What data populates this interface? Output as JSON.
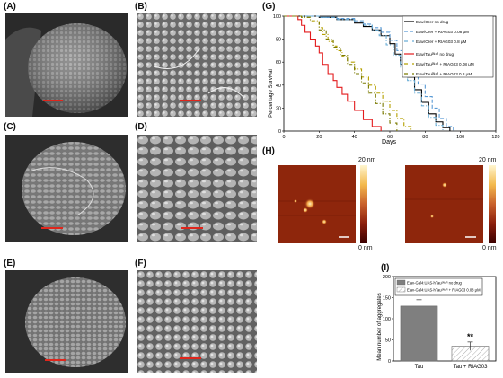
{
  "panels": {
    "A": "(A)",
    "B": "(B)",
    "C": "(C)",
    "D": "(D)",
    "E": "(E)",
    "F": "(F)",
    "G": "(G)",
    "H": "(H)",
    "I": "(I)"
  },
  "chart_data": [
    {
      "type": "line",
      "panel": "G",
      "xlabel": "Days",
      "ylabel": "Percentage Survival",
      "xlim": [
        0,
        120
      ],
      "ylim": [
        0,
        100
      ],
      "xticks": [
        0,
        20,
        40,
        60,
        80,
        100,
        120
      ],
      "yticks": [
        0,
        20,
        40,
        60,
        80,
        100
      ],
      "grid": false,
      "legend_position": "top-right",
      "colors": [
        "#000000",
        "#5b9bd5",
        "#6baed6",
        "#e31a1c",
        "#b5a000",
        "#7a7a00"
      ],
      "series": [
        {
          "name": "Elav/Orer no drug",
          "color": "#000000",
          "dash": "solid",
          "x": [
            0,
            10,
            20,
            30,
            40,
            45,
            50,
            55,
            60,
            63,
            66,
            70,
            74,
            78,
            82,
            86,
            90,
            94
          ],
          "y": [
            100,
            100,
            99,
            97,
            94,
            91,
            88,
            83,
            76,
            67,
            58,
            47,
            36,
            25,
            15,
            8,
            3,
            0
          ]
        },
        {
          "name": "Elav/Orer + RIAG03 0.08 μM",
          "color": "#5b9bd5",
          "dash": "dash",
          "x": [
            0,
            10,
            20,
            30,
            40,
            45,
            50,
            55,
            60,
            64,
            68,
            72,
            76,
            80,
            84,
            88,
            92,
            96
          ],
          "y": [
            100,
            100,
            99,
            98,
            96,
            93,
            90,
            86,
            79,
            70,
            61,
            51,
            41,
            30,
            20,
            11,
            4,
            0
          ]
        },
        {
          "name": "Elav/Orer + RIAG03 0.8 μM",
          "color": "#6baed6",
          "dash": "dashdot",
          "x": [
            0,
            10,
            20,
            30,
            40,
            45,
            50,
            54,
            58,
            62,
            66,
            70,
            74,
            78,
            82,
            86,
            90
          ],
          "y": [
            100,
            100,
            99,
            97,
            95,
            92,
            88,
            83,
            75,
            66,
            55,
            44,
            33,
            22,
            12,
            5,
            0
          ]
        },
        {
          "name": "Elav/Tau^2N4R no drug",
          "color": "#e31a1c",
          "dash": "solid",
          "x": [
            0,
            5,
            8,
            10,
            12,
            15,
            18,
            20,
            22,
            25,
            28,
            30,
            33,
            36,
            40,
            45,
            50,
            55
          ],
          "y": [
            100,
            100,
            97,
            92,
            86,
            80,
            74,
            68,
            58,
            50,
            44,
            38,
            32,
            26,
            18,
            10,
            4,
            0
          ]
        },
        {
          "name": "Elav/Tau^2N4R + RIAG03 0.08 μM",
          "color": "#b5a000",
          "dash": "dashdot",
          "x": [
            0,
            10,
            15,
            20,
            22,
            25,
            28,
            30,
            33,
            36,
            40,
            44,
            48,
            52,
            56,
            60,
            64,
            68,
            72
          ],
          "y": [
            100,
            99,
            96,
            90,
            84,
            78,
            74,
            70,
            65,
            60,
            54,
            47,
            40,
            33,
            26,
            18,
            11,
            4,
            0
          ]
        },
        {
          "name": "Elav/Tau^2N4R + RIAG03 0.8 μM",
          "color": "#7a7a00",
          "dash": "dashdot",
          "x": [
            0,
            10,
            15,
            20,
            24,
            28,
            32,
            36,
            40,
            44,
            48,
            52,
            56,
            60,
            64
          ],
          "y": [
            100,
            99,
            95,
            88,
            80,
            73,
            66,
            58,
            50,
            42,
            33,
            24,
            15,
            7,
            0
          ]
        }
      ]
    },
    {
      "type": "bar",
      "panel": "I",
      "ylabel": "Mean number of aggregates",
      "categories": [
        "Tau",
        "Tau + RIAG03"
      ],
      "ylim": [
        0,
        200
      ],
      "yticks": [
        0,
        50,
        100,
        150,
        200
      ],
      "values": [
        130,
        35
      ],
      "errors": [
        15,
        10
      ],
      "annotations": [
        "",
        "**"
      ],
      "legend_position": "top-left",
      "series": [
        {
          "name": "Elav-Gal4:UAS-hTau^2N4R no drug",
          "color": "#7f7f7f",
          "pattern": "solid"
        },
        {
          "name": "Elav-Gal4:UAS-hTau^2N4R + RIAG03 0.08 μM",
          "color": "#ffffff",
          "pattern": "hatch"
        }
      ]
    }
  ],
  "afm": {
    "scale_top": "20 nm",
    "scale_bottom": "0 nm",
    "cmap": [
      "#fff6d0",
      "#f3b94d",
      "#c8602b",
      "#8b1e0c",
      "#3a0000"
    ]
  },
  "sem_scale_color": "#e0261c"
}
